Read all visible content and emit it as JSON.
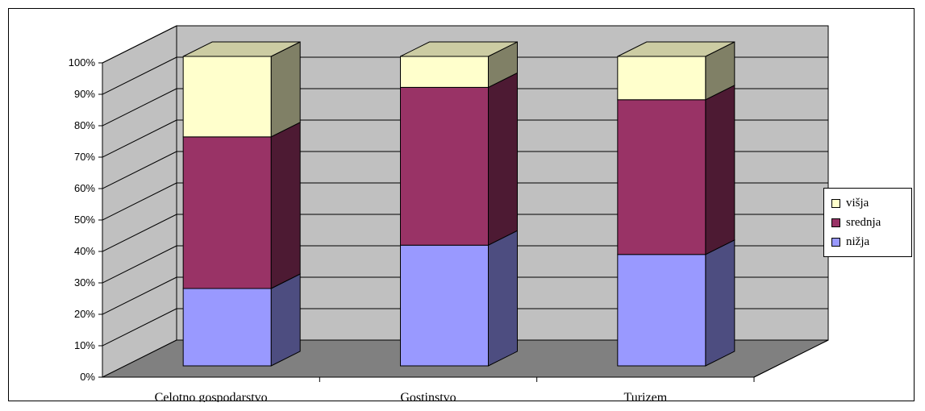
{
  "chart_data": {
    "type": "bar",
    "stacked": true,
    "percent_stacked": true,
    "three_d": true,
    "categories": [
      "Celotno gospodarstvo",
      "Gostinstvo",
      "Turizem"
    ],
    "series": [
      {
        "name": "nižja",
        "values": [
          25,
          39,
          36
        ],
        "color": "#9999ff"
      },
      {
        "name": "srednja",
        "values": [
          49,
          51,
          50
        ],
        "color": "#993366"
      },
      {
        "name": "višja",
        "values": [
          26,
          10,
          14
        ],
        "color": "#ffffcc"
      }
    ],
    "ylim": [
      0,
      100
    ],
    "yticks": [
      "0%",
      "10%",
      "20%",
      "30%",
      "40%",
      "50%",
      "60%",
      "70%",
      "80%",
      "90%",
      "100%"
    ],
    "grid": true,
    "legend_position": "right",
    "legend_order": [
      "višja",
      "srednja",
      "nižja"
    ],
    "colors": {
      "wall": "#c0c0c0",
      "floor": "#808080"
    }
  }
}
